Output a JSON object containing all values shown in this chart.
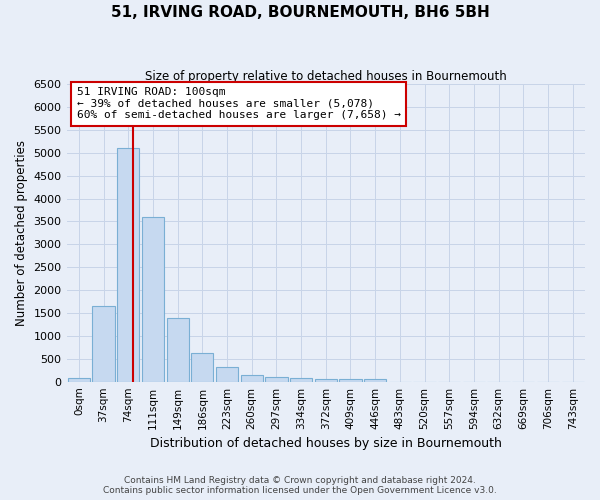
{
  "title": "51, IRVING ROAD, BOURNEMOUTH, BH6 5BH",
  "subtitle": "Size of property relative to detached houses in Bournemouth",
  "xlabel": "Distribution of detached houses by size in Bournemouth",
  "ylabel": "Number of detached properties",
  "footer_line1": "Contains HM Land Registry data © Crown copyright and database right 2024.",
  "footer_line2": "Contains public sector information licensed under the Open Government Licence v3.0.",
  "bin_labels": [
    "0sqm",
    "37sqm",
    "74sqm",
    "111sqm",
    "149sqm",
    "186sqm",
    "223sqm",
    "260sqm",
    "297sqm",
    "334sqm",
    "372sqm",
    "409sqm",
    "446sqm",
    "483sqm",
    "520sqm",
    "557sqm",
    "594sqm",
    "632sqm",
    "669sqm",
    "706sqm",
    "743sqm"
  ],
  "bar_values": [
    80,
    1650,
    5100,
    3600,
    1400,
    620,
    310,
    150,
    100,
    70,
    60,
    55,
    55,
    0,
    0,
    0,
    0,
    0,
    0,
    0,
    0
  ],
  "bar_color": "#c6d9f0",
  "bar_edge_color": "#7aafd4",
  "grid_color": "#c8d4e8",
  "plot_bg_color": "#e8eef8",
  "fig_bg_color": "#e8eef8",
  "red_line_color": "#cc0000",
  "annotation_text_line1": "51 IRVING ROAD: 100sqm",
  "annotation_text_line2": "← 39% of detached houses are smaller (5,078)",
  "annotation_text_line3": "60% of semi-detached houses are larger (7,658) →",
  "annotation_box_color": "#ffffff",
  "annotation_border_color": "#cc0000",
  "ylim": [
    0,
    6500
  ],
  "yticks": [
    0,
    500,
    1000,
    1500,
    2000,
    2500,
    3000,
    3500,
    4000,
    4500,
    5000,
    5500,
    6000,
    6500
  ]
}
